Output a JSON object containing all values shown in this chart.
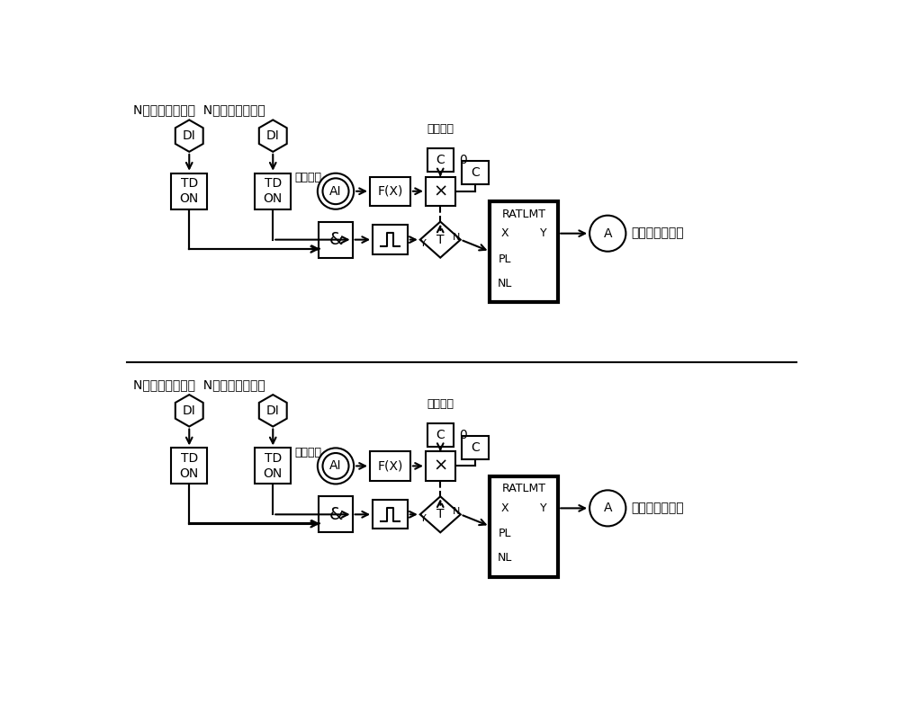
{
  "bg_color": "#ffffff",
  "line_color": "#000000",
  "title1": "N给煤机运行信号  N磨煤机运行信号",
  "title2": "N给煤机信停运号  N磨煤机停运信号",
  "label_jizugonglv": "机组功率",
  "label_buchang": "补偿煤量",
  "label_output": "去锅炉主控前馈",
  "label_zero": "0"
}
